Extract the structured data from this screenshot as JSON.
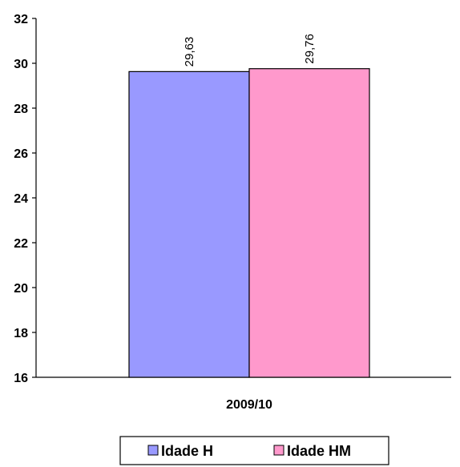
{
  "chart_data": {
    "type": "bar",
    "categories": [
      "2009/10"
    ],
    "series": [
      {
        "name": "Idade H",
        "values": [
          29.63
        ],
        "color": "#9999ff"
      },
      {
        "name": "Idade HM",
        "values": [
          29.76
        ],
        "color": "#ff99cc"
      }
    ],
    "data_labels": [
      "29,63",
      "29,76"
    ],
    "y_ticks": [
      "16",
      "18",
      "20",
      "22",
      "24",
      "26",
      "28",
      "30",
      "32"
    ],
    "ylim": [
      16,
      32
    ],
    "grid": false,
    "legend_position": "bottom"
  }
}
